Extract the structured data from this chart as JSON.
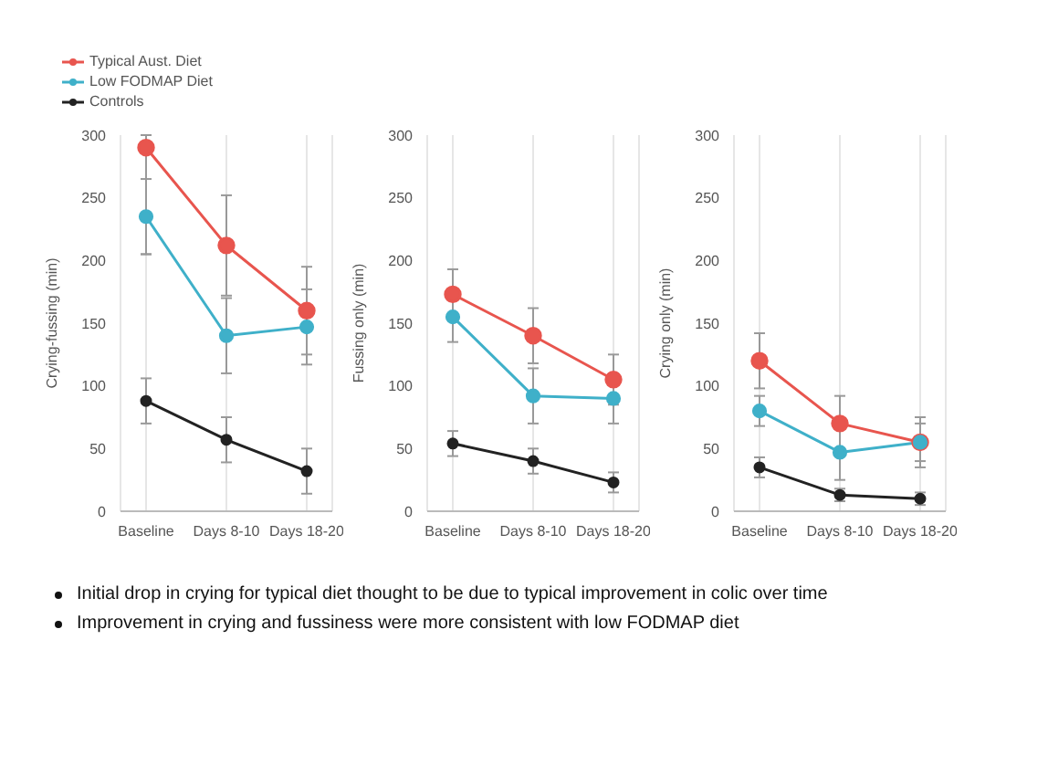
{
  "chart_data": [
    {
      "type": "line",
      "ylabel": "Crying-fussing (min)",
      "categories": [
        "Baseline",
        "Days 8-10",
        "Days 18-20"
      ],
      "ylim": [
        0,
        300
      ],
      "yticks": [
        0,
        50,
        100,
        150,
        200,
        250,
        300
      ],
      "grid": "x",
      "legend": "top left",
      "marker": "circle",
      "series": [
        {
          "name": "Typical Aust. Diet",
          "color": "#e8554e",
          "values": [
            290,
            212,
            160
          ],
          "errors": [
            [
              205,
              300
            ],
            40,
            35
          ]
        },
        {
          "name": "Low FODMAP Diet",
          "color": "#3fb0c9",
          "values": [
            235,
            140,
            147
          ],
          "errors": [
            30,
            30,
            30
          ]
        },
        {
          "name": "Controls",
          "color": "#222222",
          "values": [
            88,
            57,
            32
          ],
          "errors": [
            18,
            18,
            18
          ]
        }
      ]
    },
    {
      "type": "line",
      "ylabel": "Fussing only (min)",
      "categories": [
        "Baseline",
        "Days 8-10",
        "Days 18-20"
      ],
      "ylim": [
        0,
        300
      ],
      "yticks": [
        0,
        50,
        100,
        150,
        200,
        250,
        300
      ],
      "grid": "x",
      "marker": "circle",
      "series": [
        {
          "color": "#e8554e",
          "values": [
            173,
            140,
            105
          ],
          "errors": [
            20,
            22,
            20
          ]
        },
        {
          "color": "#3fb0c9",
          "values": [
            155,
            92,
            90
          ],
          "errors": [
            20,
            22,
            20
          ]
        },
        {
          "color": "#222222",
          "values": [
            54,
            40,
            23
          ],
          "errors": [
            10,
            10,
            8
          ]
        }
      ]
    },
    {
      "type": "line",
      "ylabel": "Crying only (min)",
      "categories": [
        "Baseline",
        "Days 8-10",
        "Days 18-20"
      ],
      "ylim": [
        0,
        300
      ],
      "yticks": [
        0,
        50,
        100,
        150,
        200,
        250,
        300
      ],
      "grid": "x",
      "marker": "circle",
      "series": [
        {
          "color": "#e8554e",
          "values": [
            120,
            70,
            55
          ],
          "errors": [
            22,
            22,
            20
          ]
        },
        {
          "color": "#3fb0c9",
          "values": [
            80,
            47,
            55
          ],
          "errors": [
            12,
            22,
            15
          ]
        },
        {
          "color": "#222222",
          "values": [
            35,
            13,
            10
          ],
          "errors": [
            8,
            5,
            5
          ]
        }
      ],
      "annotations": [
        "Initial drop in crying for typical diet thought to be due to typical improvement in colic over time",
        "Improvement in crying and fussiness were more consistent with low FODMAP diet"
      ]
    }
  ]
}
